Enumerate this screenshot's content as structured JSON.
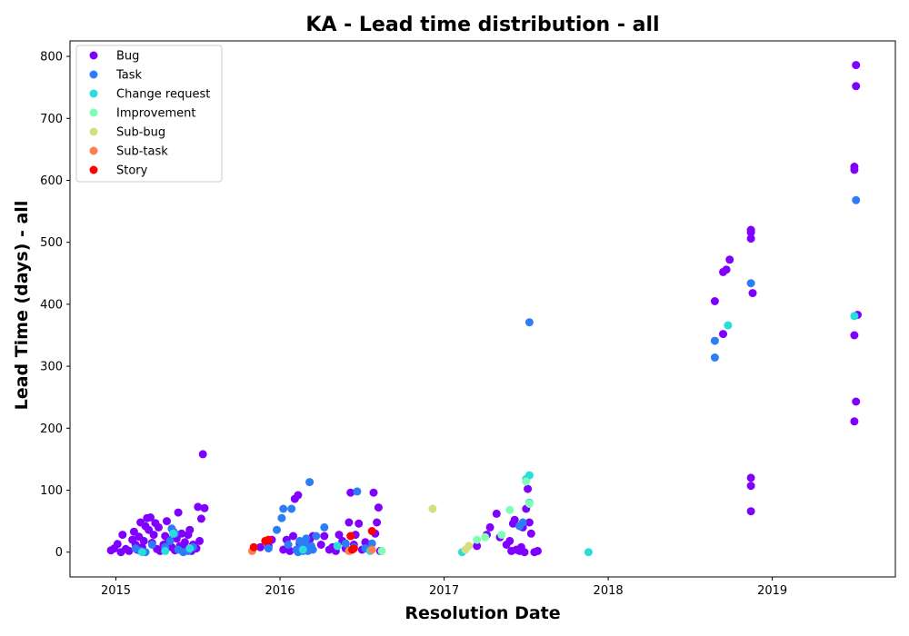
{
  "chart_data": {
    "type": "scatter",
    "title": "KA - Lead time distribution - all",
    "xlabel": "Resolution Date",
    "ylabel": "Lead Time (days) - all",
    "xlim": [
      2014.72,
      2019.75
    ],
    "ylim": [
      -40,
      825
    ],
    "x_ticks": [
      2015,
      2016,
      2017,
      2018,
      2019
    ],
    "y_ticks": [
      0,
      100,
      200,
      300,
      400,
      500,
      600,
      700,
      800
    ],
    "grid": false,
    "legend_position": "top-left",
    "series": [
      {
        "name": "Bug",
        "color": "#8000ff",
        "points": [
          [
            2014.97,
            3
          ],
          [
            2014.99,
            6
          ],
          [
            2015.01,
            13
          ],
          [
            2015.03,
            0
          ],
          [
            2015.04,
            28
          ],
          [
            2015.06,
            5
          ],
          [
            2015.08,
            2
          ],
          [
            2015.1,
            20
          ],
          [
            2015.11,
            33
          ],
          [
            2015.12,
            12
          ],
          [
            2015.13,
            4
          ],
          [
            2015.14,
            25
          ],
          [
            2015.15,
            48
          ],
          [
            2015.16,
            8
          ],
          [
            2015.17,
            18
          ],
          [
            2015.18,
            42
          ],
          [
            2015.19,
            55
          ],
          [
            2015.2,
            36
          ],
          [
            2015.21,
            56
          ],
          [
            2015.22,
            15
          ],
          [
            2015.23,
            28
          ],
          [
            2015.24,
            47
          ],
          [
            2015.25,
            5
          ],
          [
            2015.26,
            40
          ],
          [
            2015.27,
            2
          ],
          [
            2015.29,
            12
          ],
          [
            2015.3,
            26
          ],
          [
            2015.31,
            50
          ],
          [
            2015.32,
            20
          ],
          [
            2015.34,
            8
          ],
          [
            2015.35,
            33
          ],
          [
            2015.36,
            3
          ],
          [
            2015.37,
            22
          ],
          [
            2015.38,
            64
          ],
          [
            2015.39,
            10
          ],
          [
            2015.4,
            30
          ],
          [
            2015.42,
            16
          ],
          [
            2015.43,
            5
          ],
          [
            2015.44,
            28
          ],
          [
            2015.45,
            36
          ],
          [
            2015.46,
            2
          ],
          [
            2015.47,
            12
          ],
          [
            2015.49,
            6
          ],
          [
            2015.5,
            73
          ],
          [
            2015.51,
            18
          ],
          [
            2015.52,
            54
          ],
          [
            2015.53,
            158
          ],
          [
            2015.54,
            71
          ],
          [
            2015.88,
            8
          ],
          [
            2015.93,
            10
          ],
          [
            2015.95,
            20
          ],
          [
            2016.02,
            4
          ],
          [
            2016.04,
            20
          ],
          [
            2016.06,
            2
          ],
          [
            2016.08,
            26
          ],
          [
            2016.09,
            86
          ],
          [
            2016.11,
            92
          ],
          [
            2016.12,
            14
          ],
          [
            2016.15,
            6
          ],
          [
            2016.18,
            20
          ],
          [
            2016.2,
            26
          ],
          [
            2016.25,
            12
          ],
          [
            2016.27,
            26
          ],
          [
            2016.3,
            4
          ],
          [
            2016.32,
            8
          ],
          [
            2016.34,
            2
          ],
          [
            2016.36,
            28
          ],
          [
            2016.38,
            18
          ],
          [
            2016.4,
            6
          ],
          [
            2016.42,
            48
          ],
          [
            2016.43,
            96
          ],
          [
            2016.45,
            12
          ],
          [
            2016.46,
            28
          ],
          [
            2016.48,
            46
          ],
          [
            2016.5,
            4
          ],
          [
            2016.52,
            16
          ],
          [
            2016.55,
            8
          ],
          [
            2016.57,
            96
          ],
          [
            2016.58,
            30
          ],
          [
            2016.59,
            48
          ],
          [
            2016.6,
            72
          ],
          [
            2016.61,
            2
          ],
          [
            2017.2,
            10
          ],
          [
            2017.26,
            28
          ],
          [
            2017.28,
            40
          ],
          [
            2017.32,
            62
          ],
          [
            2017.34,
            24
          ],
          [
            2017.38,
            12
          ],
          [
            2017.4,
            18
          ],
          [
            2017.41,
            2
          ],
          [
            2017.42,
            46
          ],
          [
            2017.43,
            52
          ],
          [
            2017.44,
            4
          ],
          [
            2017.46,
            2
          ],
          [
            2017.47,
            8
          ],
          [
            2017.48,
            40
          ],
          [
            2017.49,
            0
          ],
          [
            2017.5,
            70
          ],
          [
            2017.51,
            102
          ],
          [
            2017.52,
            48
          ],
          [
            2017.53,
            30
          ],
          [
            2017.55,
            0
          ],
          [
            2017.57,
            2
          ],
          [
            2018.65,
            405
          ],
          [
            2018.7,
            452
          ],
          [
            2018.72,
            456
          ],
          [
            2018.7,
            352
          ],
          [
            2018.74,
            472
          ],
          [
            2018.87,
            520
          ],
          [
            2018.87,
            516
          ],
          [
            2018.87,
            506
          ],
          [
            2018.88,
            418
          ],
          [
            2018.87,
            120
          ],
          [
            2018.87,
            107
          ],
          [
            2018.87,
            66
          ],
          [
            2019.5,
            622
          ],
          [
            2019.5,
            617
          ],
          [
            2019.51,
            786
          ],
          [
            2019.51,
            752
          ],
          [
            2019.5,
            350
          ],
          [
            2019.52,
            383
          ],
          [
            2019.51,
            243
          ],
          [
            2019.5,
            211
          ]
        ]
      },
      {
        "name": "Task",
        "color": "#2c7ef7",
        "points": [
          [
            2015.12,
            6
          ],
          [
            2015.15,
            2
          ],
          [
            2015.18,
            0
          ],
          [
            2015.22,
            12
          ],
          [
            2015.3,
            8
          ],
          [
            2015.33,
            18
          ],
          [
            2015.34,
            38
          ],
          [
            2015.36,
            30
          ],
          [
            2015.38,
            4
          ],
          [
            2015.41,
            0
          ],
          [
            2015.44,
            2
          ],
          [
            2015.47,
            8
          ],
          [
            2015.93,
            6
          ],
          [
            2015.98,
            36
          ],
          [
            2016.01,
            55
          ],
          [
            2016.02,
            70
          ],
          [
            2016.05,
            12
          ],
          [
            2016.07,
            70
          ],
          [
            2016.1,
            4
          ],
          [
            2016.11,
            0
          ],
          [
            2016.12,
            18
          ],
          [
            2016.13,
            8
          ],
          [
            2016.14,
            2
          ],
          [
            2016.15,
            14
          ],
          [
            2016.16,
            22
          ],
          [
            2016.17,
            2
          ],
          [
            2016.18,
            113
          ],
          [
            2016.19,
            10
          ],
          [
            2016.2,
            4
          ],
          [
            2016.22,
            26
          ],
          [
            2016.27,
            40
          ],
          [
            2016.35,
            10
          ],
          [
            2016.4,
            14
          ],
          [
            2016.45,
            8
          ],
          [
            2016.47,
            98
          ],
          [
            2016.52,
            6
          ],
          [
            2016.56,
            14
          ],
          [
            2017.46,
            42
          ],
          [
            2017.48,
            48
          ],
          [
            2017.52,
            371
          ],
          [
            2018.65,
            341
          ],
          [
            2018.65,
            314
          ],
          [
            2018.87,
            434
          ],
          [
            2019.51,
            568
          ]
        ]
      },
      {
        "name": "Change request",
        "color": "#2adddd",
        "points": [
          [
            2015.16,
            0
          ],
          [
            2015.3,
            2
          ],
          [
            2015.35,
            30
          ],
          [
            2015.45,
            6
          ],
          [
            2016.14,
            4
          ],
          [
            2016.35,
            10
          ],
          [
            2016.55,
            2
          ],
          [
            2017.11,
            0
          ],
          [
            2017.5,
            118
          ],
          [
            2017.52,
            124
          ],
          [
            2017.52,
            80
          ],
          [
            2017.88,
            0
          ],
          [
            2018.73,
            366
          ],
          [
            2019.5,
            381
          ]
        ]
      },
      {
        "name": "Improvement",
        "color": "#80ffb4",
        "points": [
          [
            2016.62,
            2
          ],
          [
            2017.2,
            20
          ],
          [
            2017.25,
            24
          ],
          [
            2017.35,
            28
          ],
          [
            2017.4,
            68
          ],
          [
            2017.5,
            114
          ],
          [
            2017.52,
            78
          ]
        ]
      },
      {
        "name": "Sub-bug",
        "color": "#d4dd80",
        "points": [
          [
            2016.93,
            70
          ],
          [
            2017.13,
            4
          ],
          [
            2017.15,
            10
          ]
        ]
      },
      {
        "name": "Sub-task",
        "color": "#ff7f4e",
        "points": [
          [
            2015.83,
            2
          ],
          [
            2016.42,
            2
          ],
          [
            2016.56,
            4
          ]
        ]
      },
      {
        "name": "Story",
        "color": "#ff0000",
        "points": [
          [
            2015.84,
            8
          ],
          [
            2015.91,
            18
          ],
          [
            2015.93,
            20
          ],
          [
            2016.43,
            26
          ],
          [
            2016.44,
            4
          ],
          [
            2016.45,
            6
          ],
          [
            2016.56,
            34
          ]
        ]
      }
    ]
  }
}
